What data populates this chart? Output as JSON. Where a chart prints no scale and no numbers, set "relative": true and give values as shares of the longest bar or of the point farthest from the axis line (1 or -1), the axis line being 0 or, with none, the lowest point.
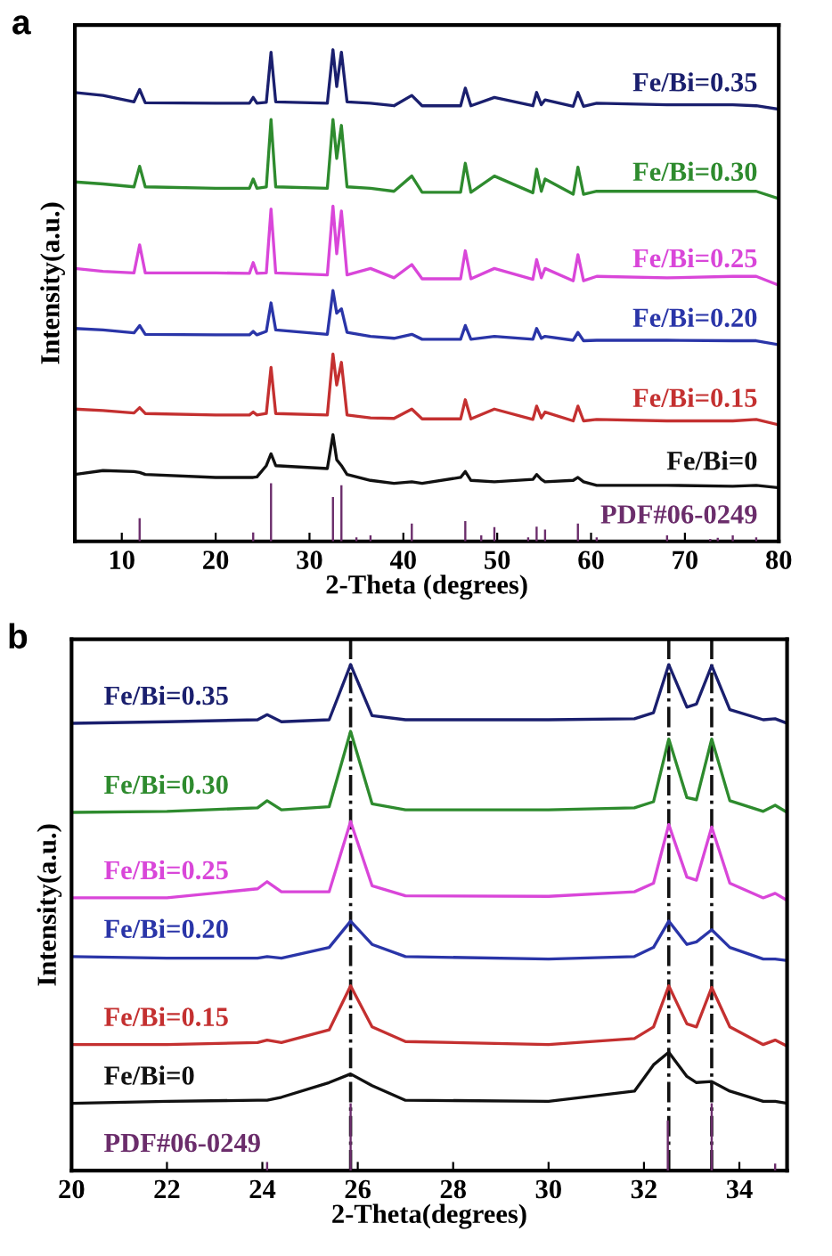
{
  "chart_data": [
    {
      "type": "line",
      "relative": true,
      "xlabel": "2-Theta (degrees)",
      "ylabel": "Intensity(a.u.)",
      "annotations": [
        "a"
      ],
      "xlim": [
        5,
        80
      ],
      "xticks": [
        10,
        20,
        30,
        40,
        50,
        60,
        70,
        80
      ],
      "tick_labels": "x",
      "x": [
        5,
        8,
        11.3,
        11.9,
        12.5,
        20,
        23.6,
        24.0,
        24.4,
        25.4,
        25.9,
        26.4,
        31.9,
        32.5,
        32.9,
        33.4,
        34.0,
        36.5,
        39,
        40.9,
        42,
        46.1,
        46.6,
        47.2,
        49.7,
        53.8,
        54.2,
        54.7,
        55.1,
        58.1,
        58.6,
        59.2,
        60.6,
        68.1,
        75.1,
        77.6,
        80
      ],
      "series": [
        {
          "name": "Fe/Bi=0.35",
          "color": "#1a1f6e",
          "values": [
            0.913,
            0.907,
            0.894,
            0.919,
            0.892,
            0.891,
            0.891,
            0.903,
            0.891,
            0.893,
            0.995,
            0.894,
            0.891,
            1,
            0.925,
            0.995,
            0.894,
            0.891,
            0.886,
            0.907,
            0.886,
            0.886,
            0.922,
            0.886,
            0.903,
            0.886,
            0.913,
            0.888,
            0.898,
            0.885,
            0.913,
            0.885,
            0.891,
            0.888,
            0.888,
            0.886,
            0.879
          ]
        },
        {
          "name": "Fe/Bi=0.30",
          "color": "#2e8b2e",
          "values": [
            0.731,
            0.727,
            0.721,
            0.763,
            0.721,
            0.718,
            0.718,
            0.737,
            0.718,
            0.721,
            0.858,
            0.721,
            0.718,
            0.858,
            0.779,
            0.846,
            0.721,
            0.718,
            0.712,
            0.743,
            0.71,
            0.71,
            0.769,
            0.71,
            0.743,
            0.709,
            0.757,
            0.712,
            0.737,
            0.706,
            0.761,
            0.706,
            0.712,
            0.712,
            0.712,
            0.712,
            0.697
          ]
        },
        {
          "name": "Fe/Bi=0.25",
          "color": "#d946d9",
          "values": [
            0.555,
            0.549,
            0.546,
            0.603,
            0.546,
            0.546,
            0.545,
            0.567,
            0.545,
            0.546,
            0.676,
            0.546,
            0.542,
            0.682,
            0.585,
            0.672,
            0.542,
            0.555,
            0.536,
            0.563,
            0.534,
            0.534,
            0.591,
            0.534,
            0.555,
            0.533,
            0.573,
            0.536,
            0.555,
            0.53,
            0.583,
            0.53,
            0.539,
            0.536,
            0.539,
            0.539,
            0.521
          ]
        },
        {
          "name": "Fe/Bi=0.20",
          "color": "#2a35a8",
          "values": [
            0.433,
            0.43,
            0.424,
            0.439,
            0.421,
            0.42,
            0.42,
            0.427,
            0.42,
            0.427,
            0.485,
            0.43,
            0.421,
            0.51,
            0.464,
            0.473,
            0.425,
            0.417,
            0.413,
            0.421,
            0.411,
            0.411,
            0.439,
            0.411,
            0.417,
            0.411,
            0.433,
            0.413,
            0.417,
            0.409,
            0.425,
            0.408,
            0.409,
            0.409,
            0.408,
            0.408,
            0.4
          ]
        },
        {
          "name": "Fe/Bi=0.15",
          "color": "#c43030",
          "values": [
            0.269,
            0.266,
            0.261,
            0.272,
            0.26,
            0.257,
            0.257,
            0.263,
            0.257,
            0.26,
            0.354,
            0.26,
            0.257,
            0.381,
            0.318,
            0.364,
            0.257,
            0.251,
            0.25,
            0.269,
            0.249,
            0.249,
            0.288,
            0.249,
            0.269,
            0.248,
            0.275,
            0.251,
            0.263,
            0.245,
            0.275,
            0.245,
            0.248,
            0.245,
            0.245,
            0.248,
            0.237
          ]
        },
        {
          "name": "Fe/Bi=0",
          "color": "#111111",
          "values": [
            0.136,
            0.144,
            0.142,
            0.14,
            0.136,
            0.13,
            0.13,
            0.13,
            0.131,
            0.154,
            0.178,
            0.154,
            0.148,
            0.217,
            0.166,
            0.154,
            0.136,
            0.124,
            0.118,
            0.121,
            0.118,
            0.13,
            0.142,
            0.124,
            0.121,
            0.126,
            0.136,
            0.126,
            0.121,
            0.124,
            0.13,
            0.121,
            0.114,
            0.114,
            0.112,
            0.114,
            0.109
          ]
        },
        {
          "name": "PDF#06-0249",
          "type": "bar",
          "color": "#6b2d6b",
          "x": [
            11.9,
            24,
            25.9,
            32.5,
            33.4,
            35,
            36.5,
            40.9,
            46.6,
            48.3,
            49.7,
            53.3,
            54.2,
            55.1,
            58.6,
            60.6,
            68.1,
            72.7,
            73.5,
            75.1,
            77.6
          ],
          "values": [
            0.047,
            0.018,
            0.118,
            0.09,
            0.114,
            0.008,
            0.012,
            0.036,
            0.041,
            0.012,
            0.029,
            0.008,
            0.03,
            0.024,
            0.036,
            0.008,
            0.012,
            0.005,
            0.007,
            0.012,
            0.008
          ]
        }
      ]
    },
    {
      "type": "line",
      "relative": true,
      "xlabel": "2-Theta(degrees)",
      "ylabel": "Intensity(a.u.)",
      "annotations": [
        "b"
      ],
      "xlim": [
        20,
        35
      ],
      "xticks": [
        20,
        22,
        24,
        26,
        28,
        30,
        32,
        34
      ],
      "tick_labels": "x",
      "ref_lines": [
        {
          "axis": "x",
          "value": 25.85,
          "color": "#111111",
          "line_style": "dashdot"
        },
        {
          "axis": "x",
          "value": 32.52,
          "color": "#111111",
          "line_style": "dashdot"
        },
        {
          "axis": "x",
          "value": 33.42,
          "color": "#111111",
          "line_style": "dashdot"
        }
      ],
      "x": [
        20,
        22,
        23.9,
        24.1,
        24.4,
        25.4,
        25.85,
        26.3,
        27,
        30,
        31.8,
        32.2,
        32.52,
        32.9,
        33.1,
        33.42,
        33.8,
        34.5,
        34.75,
        35
      ],
      "series": [
        {
          "name": "Fe/Bi=0.35",
          "color": "#1a1f6e",
          "values": [
            0.884,
            0.887,
            0.891,
            0.901,
            0.887,
            0.891,
            1,
            0.899,
            0.891,
            0.891,
            0.893,
            0.905,
            1,
            0.916,
            0.922,
            0.998,
            0.911,
            0.891,
            0.893,
            0.884
          ]
        },
        {
          "name": "Fe/Bi=0.30",
          "color": "#2e8b2e",
          "values": [
            0.708,
            0.71,
            0.717,
            0.731,
            0.713,
            0.719,
            0.868,
            0.725,
            0.713,
            0.713,
            0.717,
            0.729,
            0.853,
            0.737,
            0.733,
            0.853,
            0.731,
            0.71,
            0.722,
            0.708
          ]
        },
        {
          "name": "Fe/Bi=0.25",
          "color": "#d946d9",
          "values": [
            0.539,
            0.539,
            0.557,
            0.571,
            0.551,
            0.551,
            0.69,
            0.563,
            0.543,
            0.542,
            0.551,
            0.568,
            0.684,
            0.58,
            0.574,
            0.679,
            0.568,
            0.539,
            0.548,
            0.534
          ]
        },
        {
          "name": "Fe/Bi=0.20",
          "color": "#2a35a8",
          "values": [
            0.423,
            0.42,
            0.42,
            0.423,
            0.42,
            0.441,
            0.493,
            0.447,
            0.423,
            0.418,
            0.423,
            0.441,
            0.493,
            0.447,
            0.452,
            0.476,
            0.441,
            0.418,
            0.418,
            0.415
          ]
        },
        {
          "name": "Fe/Bi=0.15",
          "color": "#c43030",
          "values": [
            0.249,
            0.249,
            0.253,
            0.258,
            0.253,
            0.278,
            0.365,
            0.284,
            0.255,
            0.249,
            0.261,
            0.284,
            0.365,
            0.29,
            0.284,
            0.362,
            0.284,
            0.249,
            0.258,
            0.246
          ]
        },
        {
          "name": "Fe/Bi=0",
          "color": "#111111",
          "values": [
            0.133,
            0.137,
            0.139,
            0.139,
            0.145,
            0.174,
            0.191,
            0.168,
            0.139,
            0.137,
            0.157,
            0.209,
            0.234,
            0.186,
            0.174,
            0.176,
            0.157,
            0.137,
            0.137,
            0.133
          ]
        },
        {
          "name": "PDF#06-0249",
          "type": "bar",
          "color": "#6b2d6b",
          "x": [
            24.1,
            25.85,
            32.5,
            33.42,
            34.75
          ],
          "values": [
            0.017,
            0.133,
            0.099,
            0.133,
            0.014
          ]
        }
      ]
    }
  ]
}
